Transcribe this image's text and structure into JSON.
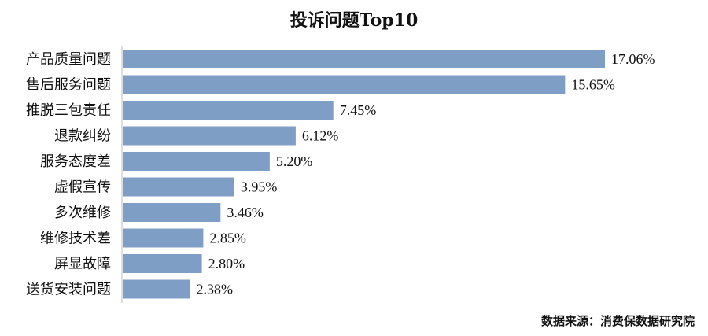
{
  "chart_data": {
    "type": "bar",
    "orientation": "horizontal",
    "title": "投诉问题Top10",
    "categories": [
      "产品质量问题",
      "售后服务问题",
      "推脱三包责任",
      "退款纠纷",
      "服务态度差",
      "虚假宣传",
      "多次维修",
      "维修技术差",
      "屏显故障",
      "送货安装问题"
    ],
    "values": [
      17.06,
      15.65,
      7.45,
      6.12,
      5.2,
      3.95,
      3.46,
      2.85,
      2.8,
      2.38
    ],
    "data_labels": [
      "17.06%",
      "15.65%",
      "7.45%",
      "6.12%",
      "5.20%",
      "3.95%",
      "3.46%",
      "2.85%",
      "2.80%",
      "2.38%"
    ],
    "xlim": [
      0,
      17.06
    ],
    "grid": false,
    "legend": "none",
    "bar_color": "#7f9ec5"
  },
  "source_note": "数据来源：消费保数据研究院"
}
